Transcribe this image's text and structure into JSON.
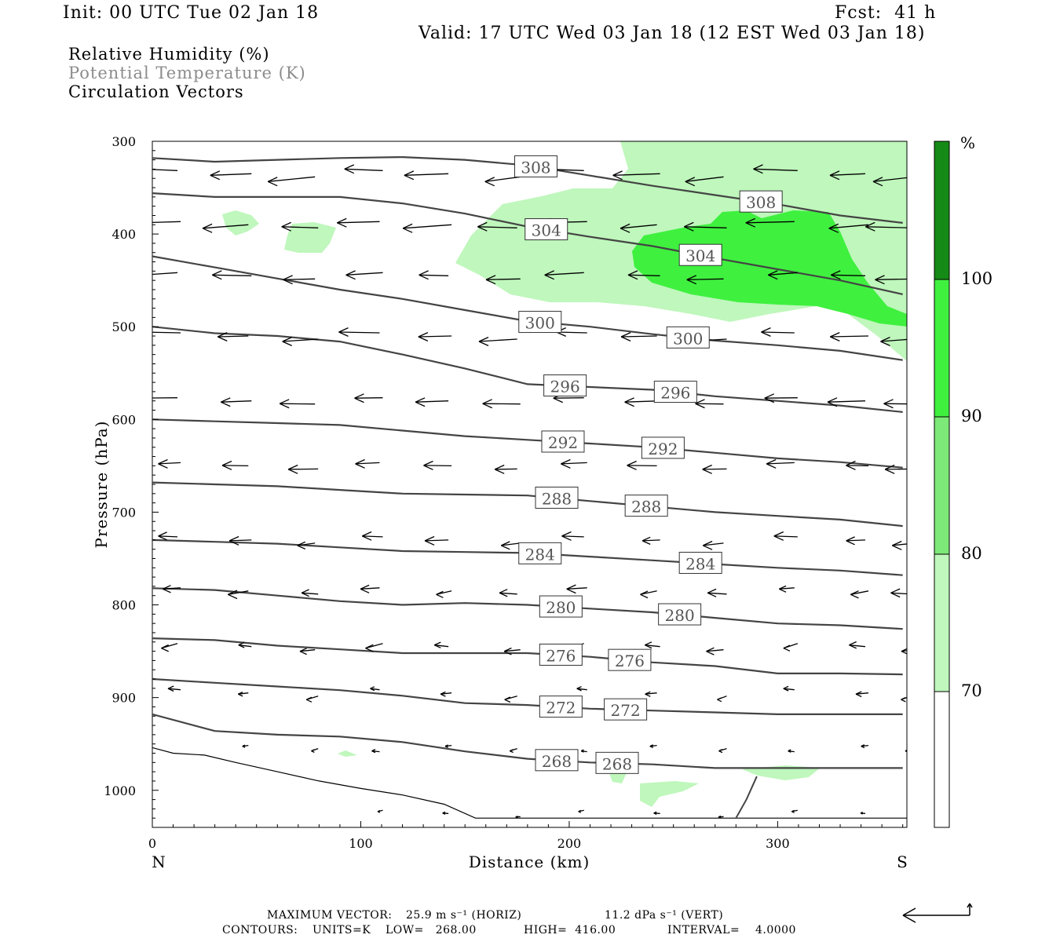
{
  "header": {
    "init": "Init: 00 UTC Tue 02 Jan 18",
    "fcst": "Fcst:  41 h",
    "valid": "Valid: 17 UTC Wed 03 Jan 18 (12 EST Wed 03 Jan 18)"
  },
  "fields": {
    "rh": "Relative Humidity (%)",
    "theta": "Potential Temperature (K)",
    "vectors": "Circulation Vectors"
  },
  "colors": {
    "rh_70_80": "#bff7bc",
    "rh_80_90": "#7ce978",
    "rh_90_100": "#3ff03f",
    "rh_100": "#168a16",
    "theta_line": "#444444",
    "theta_label": "#555555",
    "text_gray": "#8c8c8c"
  },
  "chart_data": {
    "type": "cross-section",
    "xlabel": "Distance (km)",
    "ylabel": "Pressure (hPa)",
    "x_ticks": [
      0,
      100,
      200,
      300
    ],
    "y_ticks": [
      300,
      400,
      500,
      600,
      700,
      800,
      900,
      1000
    ],
    "xlim": [
      0,
      362
    ],
    "ylim": [
      1040,
      300
    ],
    "left_end": "N",
    "right_end": "S",
    "colorbar": {
      "unit": "%",
      "levels": [
        70,
        80,
        90,
        100
      ]
    },
    "theta_contours": [
      {
        "value": 308,
        "label": "308",
        "p": [
          318,
          322,
          320,
          318,
          317,
          320,
          326,
          337,
          348,
          358,
          368,
          380,
          388
        ]
      },
      {
        "value": 304,
        "label": "304",
        "p": [
          356,
          360,
          360,
          360,
          367,
          378,
          392,
          403,
          413,
          426,
          438,
          450,
          465
        ]
      },
      {
        "value": 300,
        "label": "300",
        "p": [
          424,
          436,
          448,
          460,
          470,
          482,
          494,
          500,
          508,
          515,
          520,
          526,
          536
        ]
      },
      {
        "value": 296,
        "label": "296",
        "p": [
          500,
          507,
          510,
          516,
          530,
          545,
          562,
          565,
          568,
          575,
          580,
          585,
          592
        ]
      },
      {
        "value": 292,
        "label": "292",
        "p": [
          600,
          602,
          604,
          606,
          612,
          618,
          622,
          626,
          630,
          636,
          642,
          646,
          652
        ]
      },
      {
        "value": 288,
        "label": "288",
        "p": [
          668,
          670,
          672,
          676,
          680,
          681,
          682,
          688,
          694,
          700,
          704,
          708,
          715
        ]
      },
      {
        "value": 284,
        "label": "284",
        "p": [
          730,
          732,
          734,
          738,
          742,
          743,
          744,
          748,
          752,
          756,
          760,
          763,
          768
        ]
      },
      {
        "value": 280,
        "label": "280",
        "p": [
          782,
          784,
          790,
          796,
          800,
          798,
          800,
          804,
          808,
          814,
          820,
          822,
          826
        ]
      },
      {
        "value": 276,
        "label": "276",
        "p": [
          836,
          838,
          844,
          848,
          852,
          852,
          852,
          856,
          862,
          866,
          874,
          874,
          875
        ]
      },
      {
        "value": 272,
        "label": "272",
        "p": [
          880,
          884,
          888,
          892,
          898,
          906,
          908,
          912,
          914,
          916,
          918,
          918,
          918
        ]
      },
      {
        "value": 268,
        "label": "268",
        "p": [
          918,
          936,
          940,
          942,
          948,
          958,
          966,
          970,
          972,
          976,
          976,
          976,
          976
        ]
      }
    ],
    "theta_label_positions_km": {
      "308": [
        184,
        292
      ],
      "304": [
        189,
        263
      ],
      "300": [
        186,
        257
      ],
      "296": [
        198,
        251
      ],
      "292": [
        197,
        245
      ],
      "288": [
        194,
        237
      ],
      "284": [
        186,
        263
      ],
      "280": [
        196,
        253
      ],
      "276": [
        196,
        229
      ],
      "272": [
        196,
        227
      ],
      "268": [
        194,
        223
      ]
    },
    "surface_pressure": {
      "x": [
        0,
        10,
        25,
        40,
        60,
        80,
        100,
        120,
        140,
        155,
        175,
        200,
        230,
        260,
        290,
        362
      ],
      "p": [
        954,
        960,
        962,
        970,
        980,
        990,
        998,
        1005,
        1015,
        1030,
        1030,
        1030,
        1030,
        1030,
        1030,
        1030
      ]
    },
    "vector_scale": {
      "max_horiz": "25.9 m s⁻¹ (HORIZ)",
      "max_vert": "11.2 dPa s⁻¹ (VERT)"
    },
    "contour_info": {
      "units": "UNITS=K",
      "low": "LOW=   268.00",
      "high": "HIGH=  416.00",
      "interval": "INTERVAL=    4.0000"
    }
  },
  "footer": {
    "max_vector_prefix": "MAXIMUM VECTOR:",
    "max_horiz": "25.9 m s⁻¹ (HORIZ)",
    "max_vert": "11.2 dPa s⁻¹ (VERT)",
    "contours_prefix": "CONTOURS:"
  }
}
